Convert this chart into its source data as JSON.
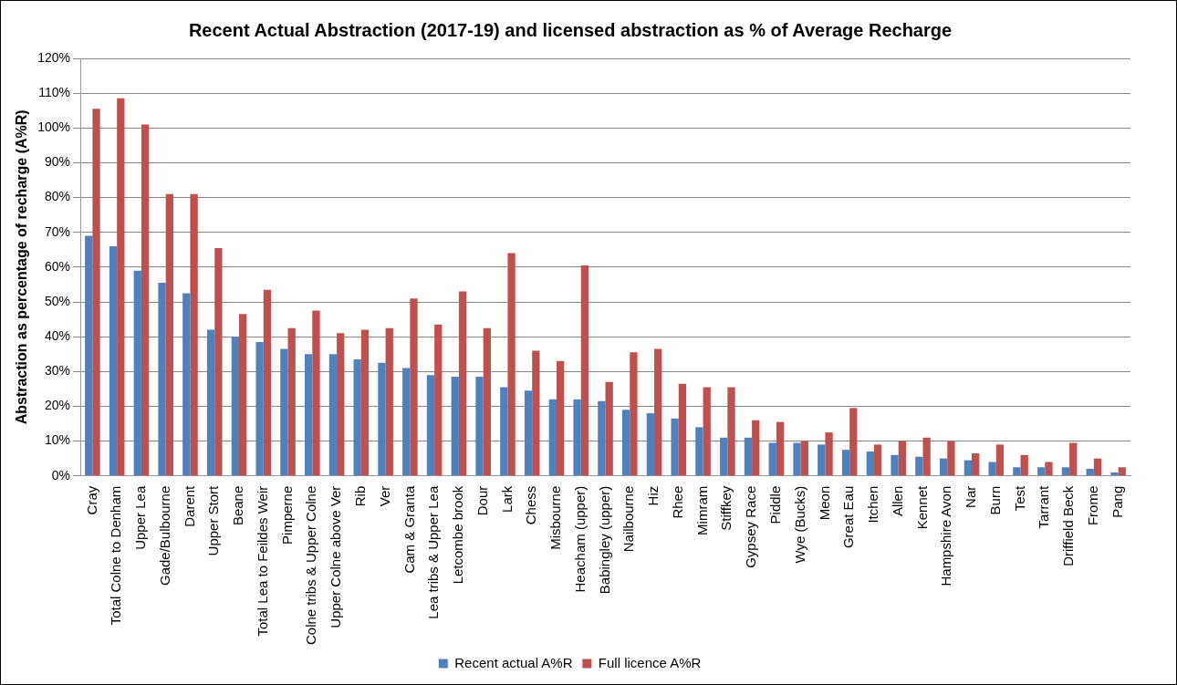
{
  "chart_data": {
    "type": "bar",
    "title": "Recent Actual Abstraction (2017-19) and licensed abstraction as % of Average Recharge",
    "ylabel": "Abstraction as percentage of recharge (A%R)",
    "categories": [
      "Cray",
      "Total Colne to Denham",
      "Upper Lea",
      "Gade/Bulbourne",
      "Darent",
      "Upper Stort",
      "Beane",
      "Total Lea to Feildes Weir",
      "Pimperne",
      "Colne tribs & Upper Colne",
      "Upper Colne above Ver",
      "Rib",
      "Ver",
      "Cam & Granta",
      "Lea tribs & Upper Lea",
      "Letcombe brook",
      "Dour",
      "Lark",
      "Chess",
      "Misbourne",
      "Heacham (upper)",
      "Babingley (upper)",
      "Nailbourne",
      "Hiz",
      "Rhee",
      "Mimram",
      "Stiffkey",
      "Gypsey Race",
      "Piddle",
      "Wye (Bucks)",
      "Meon",
      "Great Eau",
      "Itchen",
      "Allen",
      "Kennet",
      "Hampshire Avon",
      "Nar",
      "Burn",
      "Test",
      "Tarrant",
      "Driffield Beck",
      "Frome",
      "Pang"
    ],
    "series": [
      {
        "name": "Recent actual A%R",
        "color": "#4f81bd",
        "values": [
          69,
          66,
          59,
          55.5,
          52.5,
          42,
          40,
          38.5,
          36.5,
          35,
          35,
          33.5,
          32.5,
          31,
          29,
          28.5,
          28.5,
          25.5,
          24.5,
          22,
          22,
          21.5,
          19,
          18,
          16.5,
          14,
          11,
          11,
          9.5,
          9.5,
          9,
          7.5,
          7,
          6,
          5.5,
          5,
          4.5,
          4,
          2.5,
          2.5,
          2.5,
          2,
          1
        ]
      },
      {
        "name": "Full licence A%R",
        "color": "#c0504d",
        "values": [
          105.5,
          108.5,
          101,
          81,
          81,
          65.5,
          46.5,
          53.5,
          42.5,
          47.5,
          41,
          42,
          42.5,
          51,
          43.5,
          53,
          42.5,
          64,
          36,
          33,
          60.5,
          27,
          35.5,
          36.5,
          26.5,
          25.5,
          25.5,
          16,
          15.5,
          10,
          12.5,
          19.5,
          9,
          10,
          11,
          10,
          6.5,
          9,
          6,
          4,
          9.5,
          5,
          2.5
        ]
      }
    ],
    "ylim": [
      0,
      120
    ],
    "yticks": [
      {
        "value": 0,
        "label": "0%"
      },
      {
        "value": 10,
        "label": "10%"
      },
      {
        "value": 20,
        "label": "20%"
      },
      {
        "value": 30,
        "label": "30%"
      },
      {
        "value": 40,
        "label": "40%"
      },
      {
        "value": 50,
        "label": "50%"
      },
      {
        "value": 60,
        "label": "60%"
      },
      {
        "value": 70,
        "label": "70%"
      },
      {
        "value": 80,
        "label": "80%"
      },
      {
        "value": 90,
        "label": "90%"
      },
      {
        "value": 100,
        "label": "100%"
      },
      {
        "value": 110,
        "label": "110%"
      },
      {
        "value": 120,
        "label": "120%"
      }
    ],
    "grid": "y",
    "legend": "bottom"
  }
}
